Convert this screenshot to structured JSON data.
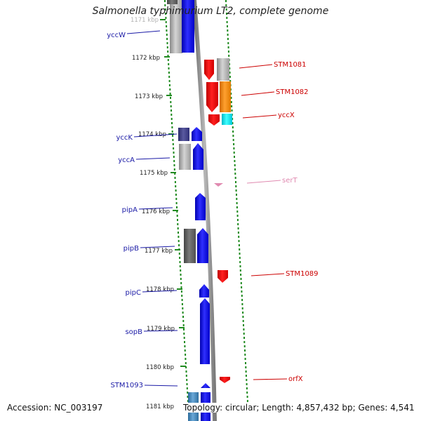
{
  "title": "Salmonella typhimurium LT2, complete genome",
  "footer": {
    "accession": "Accession: NC_003197",
    "summary": "Topology: circular; Length: 4,857,432 bp; Genes: 4,541"
  },
  "colors": {
    "blue_label": "#1a1aa6",
    "red_label": "#cc0000",
    "pink_label": "#e08ab0",
    "tick": "#1f8a1f",
    "backbone": "#8c8c8c"
  },
  "kbp_ticks": [
    {
      "label": "1171 kbp"
    },
    {
      "label": "1172 kbp"
    },
    {
      "label": "1173 kbp"
    },
    {
      "label": "1174 kbp"
    },
    {
      "label": "1175 kbp"
    },
    {
      "label": "1176 kbp"
    },
    {
      "label": "1177 kbp"
    },
    {
      "label": "1178 kbp"
    },
    {
      "label": "1179 kbp"
    },
    {
      "label": "1180 kbp"
    },
    {
      "label": "1181 kbp"
    }
  ],
  "left_labels": [
    {
      "name": "yccW"
    },
    {
      "name": "yccK"
    },
    {
      "name": "yccA"
    },
    {
      "name": "pipA"
    },
    {
      "name": "pipB"
    },
    {
      "name": "pipC"
    },
    {
      "name": "sopB"
    },
    {
      "name": "STM1093"
    }
  ],
  "right_labels": [
    {
      "name": "STM1081"
    },
    {
      "name": "STM1082"
    },
    {
      "name": "yccX"
    },
    {
      "name": "serT"
    },
    {
      "name": "STM1089"
    },
    {
      "name": "orfX"
    }
  ]
}
